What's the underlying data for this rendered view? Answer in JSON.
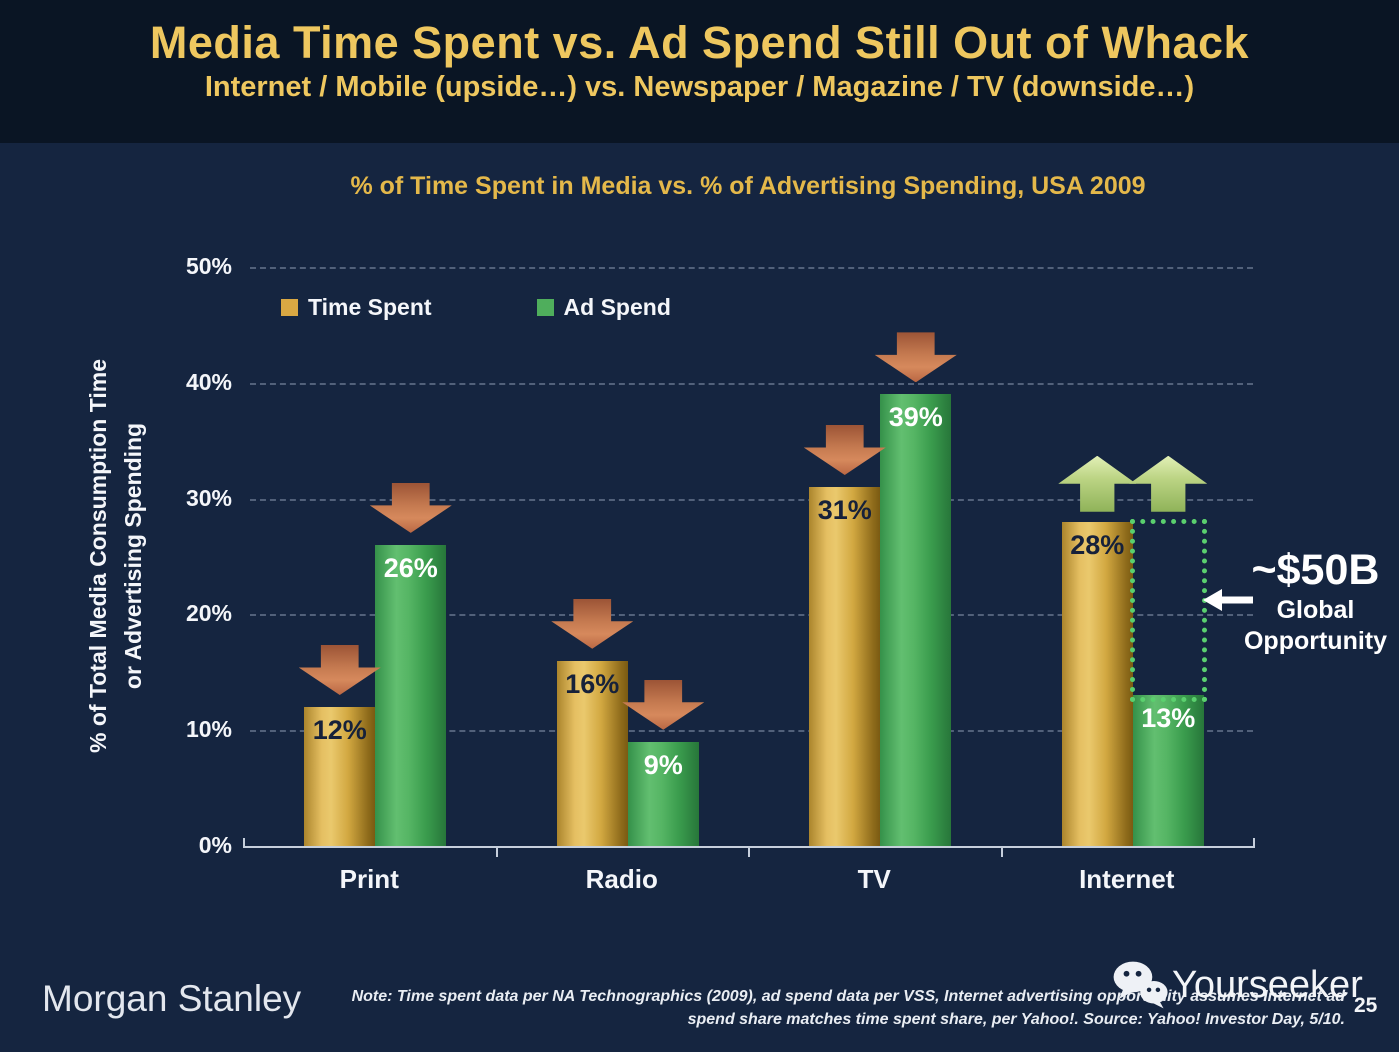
{
  "header": {
    "title": "Media Time Spent vs. Ad Spend Still Out of Whack",
    "subtitle": "Internet / Mobile (upside…) vs. Newspaper / Magazine / TV (downside…)"
  },
  "chart_data": {
    "type": "bar",
    "title": "% of Time Spent in Media vs. % of Advertising Spending, USA 2009",
    "ylabel_line1": "% of Total Media Consumption Time",
    "ylabel_line2": "or Advertising Spending",
    "ylim": [
      0,
      50
    ],
    "ytick_labels": [
      "0%",
      "10%",
      "20%",
      "30%",
      "40%",
      "50%"
    ],
    "grid": "horizontal dashed lines every 10%",
    "legend_position": "top-left inside plot",
    "categories": [
      "Print",
      "Radio",
      "TV",
      "Internet"
    ],
    "series": [
      {
        "name": "Time Spent",
        "color": "#d9a843",
        "values": [
          12,
          16,
          31,
          28
        ],
        "labels": [
          "12%",
          "16%",
          "31%",
          "28%"
        ],
        "arrows": [
          "down",
          "down",
          "down",
          "up"
        ]
      },
      {
        "name": "Ad Spend",
        "color": "#4fae5c",
        "values": [
          26,
          9,
          39,
          13
        ],
        "labels": [
          "26%",
          "9%",
          "39%",
          "13%"
        ],
        "arrows": [
          "down",
          "down",
          "down",
          "up"
        ]
      }
    ],
    "annotation": {
      "group": "Internet",
      "group_index": 3,
      "from_value": 13,
      "to_value": 28,
      "line1": "~$50B",
      "line2": "Global",
      "line3": "Opportunity"
    }
  },
  "footer": {
    "brand": "Morgan Stanley",
    "note_line1": "Note: Time spent data per NA Technographics (2009), ad spend data per VSS, Internet advertising opportunity assumes Internet ad",
    "note_line2": "spend share matches time spent share, per Yahoo!. Source: Yahoo! Investor Day, 5/10.",
    "watermark": "Yourseeker",
    "page_number": "25"
  },
  "colors": {
    "background_header": "#0a1524",
    "background_body": "#152540",
    "title_gold": "#eec75f",
    "chart_title_gold": "#e4b84a",
    "bar_gold": "#d9a843",
    "bar_green": "#4fae5c",
    "down_arrow": "#c57a50",
    "up_arrow": "#bcd484",
    "opportunity_green": "#5ad06e",
    "axis_line": "#c6cfdc"
  }
}
